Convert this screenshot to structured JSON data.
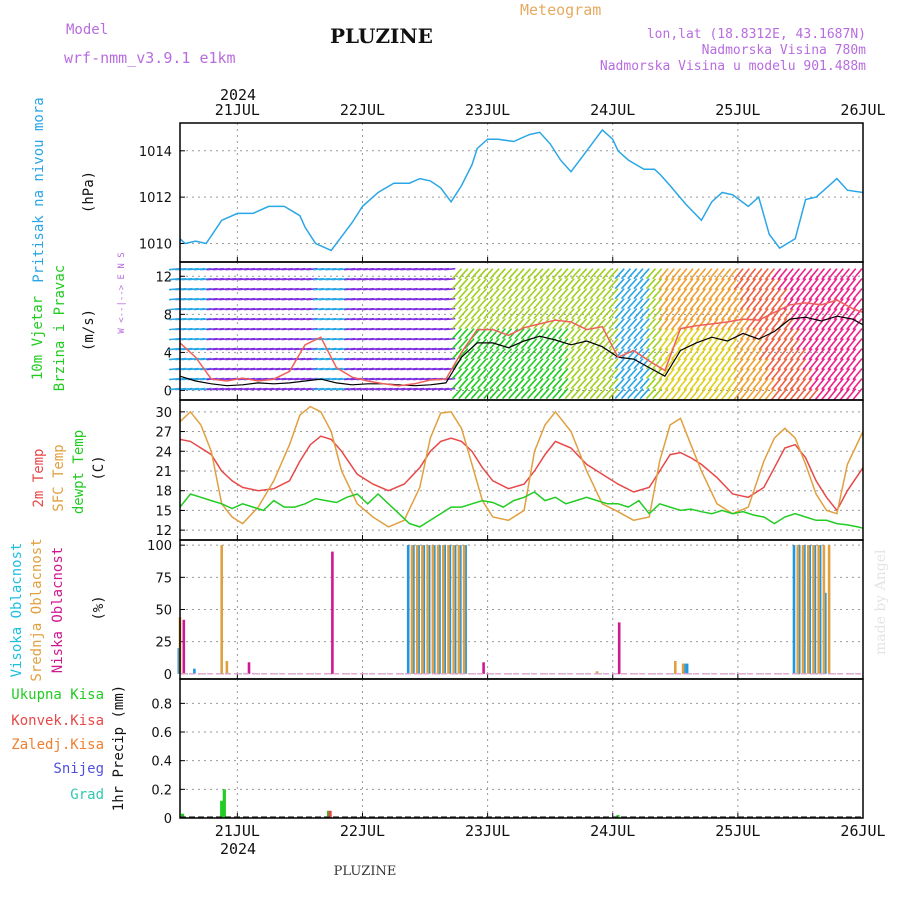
{
  "header": {
    "title": "PLUZINE",
    "model_label": "Model",
    "model_name": "wrf-nmm_v3.9.1  e1km",
    "meteogram": "Meteogram",
    "coords": "lon,lat (18.8312E, 43.1687N)",
    "elevation": "Nadmorska Visina 780m",
    "model_elevation": "Nadmorska Visina u modelu 901.488m",
    "bottom_title": "PLUZINE",
    "credit": "made by Angel"
  },
  "colors": {
    "pressure": "#2aa6e6",
    "wind_avg": "#000000",
    "wind_gust": "#f0605a",
    "temp2m": "#e84848",
    "sfc_temp": "#e0a040",
    "dewpt": "#22cc22",
    "cloud_high": "#1e96e0",
    "cloud_mid": "#e0a040",
    "cloud_low": "#d01890",
    "precip_total": "#22cc22",
    "precip_conv": "#e84848",
    "text_magenta": "#b86ce0",
    "text_orange": "#e6aa60"
  },
  "time_axis": {
    "year": "2024",
    "day_labels": [
      "21JUL",
      "22JUL",
      "23JUL",
      "24JUL",
      "25JUL",
      "26JUL"
    ],
    "start_hour": 13,
    "end_hour": 144
  },
  "chart_data": [
    {
      "type": "line",
      "title": "",
      "ylabel_side": "Pritisak na nivou mora",
      "ylabel_unit": "(hPa)",
      "ylim": [
        1009.2,
        1015.2
      ],
      "yticks": [
        1010,
        1012,
        1014
      ],
      "grid": true,
      "series": [
        {
          "name": "Pritisak na nivou mora",
          "x": [
            13,
            14,
            16,
            18,
            21,
            24,
            27,
            30,
            33,
            36,
            37,
            39,
            42,
            46,
            48,
            51,
            54,
            57,
            59,
            61,
            63,
            65,
            67,
            69,
            70,
            72,
            74,
            77,
            80,
            82,
            84,
            86,
            88,
            90,
            93,
            94,
            96,
            97,
            99,
            102,
            104,
            105,
            107,
            110,
            113,
            115,
            117,
            119,
            122,
            124,
            126,
            128,
            131,
            133,
            135,
            137,
            139,
            141,
            144
          ],
          "values": [
            1010.2,
            1010.0,
            1010.1,
            1010.0,
            1011.0,
            1011.3,
            1011.3,
            1011.6,
            1011.6,
            1011.2,
            1010.7,
            1010.0,
            1009.7,
            1010.9,
            1011.6,
            1012.2,
            1012.6,
            1012.6,
            1012.8,
            1012.7,
            1012.4,
            1011.8,
            1012.5,
            1013.4,
            1014.1,
            1014.5,
            1014.5,
            1014.4,
            1014.7,
            1014.8,
            1014.3,
            1013.6,
            1013.1,
            1013.7,
            1014.6,
            1014.9,
            1014.5,
            1014.0,
            1013.6,
            1013.2,
            1013.2,
            1013.0,
            1012.5,
            1011.7,
            1011.0,
            1011.8,
            1012.2,
            1012.1,
            1011.6,
            1012.0,
            1010.4,
            1009.8,
            1010.2,
            1011.9,
            1012.0,
            1012.4,
            1012.8,
            1012.3,
            1012.2
          ]
        }
      ]
    },
    {
      "type": "line",
      "title": "",
      "ylabel_side": [
        "10m Vjetar",
        "Brzina i Pravac"
      ],
      "ylabel_unit": "(m/s)",
      "compass": "W <--|--> E  N  S",
      "ylim": [
        -1,
        13.5
      ],
      "yticks": [
        0,
        4,
        8,
        12
      ],
      "grid": true,
      "series": [
        {
          "name": "Average wind",
          "x": [
            13,
            16,
            19,
            22,
            25,
            28,
            31,
            34,
            37,
            40,
            43,
            46,
            49,
            52,
            55,
            58,
            61,
            64,
            67,
            70,
            73,
            76,
            79,
            82,
            85,
            88,
            91,
            94,
            97,
            100,
            103,
            106,
            109,
            112,
            115,
            118,
            121,
            124,
            127,
            130,
            133,
            136,
            139,
            142,
            144
          ],
          "values": [
            1.5,
            1.0,
            0.7,
            0.5,
            0.6,
            0.8,
            0.7,
            0.8,
            1.0,
            1.2,
            0.8,
            0.6,
            0.7,
            0.7,
            0.6,
            0.5,
            0.6,
            0.8,
            3.5,
            5.0,
            5.0,
            4.5,
            5.2,
            5.7,
            5.3,
            4.8,
            5.2,
            4.6,
            3.5,
            3.3,
            2.4,
            1.5,
            4.2,
            5.0,
            5.6,
            5.2,
            6.0,
            5.4,
            6.2,
            7.5,
            7.7,
            7.3,
            7.8,
            7.5,
            6.9
          ]
        },
        {
          "name": "Wind gust",
          "x": [
            13,
            16,
            19,
            22,
            25,
            28,
            31,
            34,
            37,
            40,
            43,
            46,
            49,
            52,
            55,
            58,
            61,
            64,
            67,
            70,
            73,
            76,
            79,
            82,
            85,
            88,
            91,
            94,
            97,
            100,
            103,
            106,
            109,
            112,
            115,
            118,
            121,
            124,
            127,
            130,
            133,
            136,
            139,
            142,
            144
          ],
          "values": [
            5.0,
            3.5,
            1.2,
            1.0,
            1.3,
            1.0,
            1.2,
            2.0,
            4.8,
            5.6,
            2.4,
            1.4,
            1.0,
            0.7,
            0.5,
            0.7,
            1.1,
            1.2,
            4.0,
            6.4,
            6.4,
            5.8,
            6.6,
            7.0,
            7.4,
            7.2,
            6.4,
            6.7,
            3.5,
            4.2,
            3.1,
            2.1,
            6.5,
            6.8,
            7.0,
            7.2,
            7.5,
            7.4,
            8.2,
            9.0,
            9.2,
            9.0,
            9.5,
            8.6,
            8.2
          ]
        }
      ]
    },
    {
      "type": "line",
      "title": "",
      "ylabel_side": [
        "2m Temp",
        "SFC Temp",
        "dewpt Temp"
      ],
      "ylabel_unit": "(C)",
      "ylim": [
        10.5,
        31.8
      ],
      "yticks": [
        12,
        15,
        18,
        21,
        24,
        27,
        30
      ],
      "grid": true,
      "series": [
        {
          "name": "2m Temp",
          "x": [
            13,
            15,
            17,
            19,
            21,
            23,
            25,
            28,
            31,
            34,
            36,
            38,
            40,
            42,
            44,
            47,
            50,
            53,
            56,
            59,
            61,
            63,
            65,
            67,
            69,
            71,
            73,
            76,
            79,
            81,
            83,
            85,
            88,
            91,
            94,
            97,
            100,
            103,
            105,
            107,
            109,
            111,
            113,
            116,
            119,
            122,
            125,
            127,
            129,
            131,
            133,
            135,
            137,
            139,
            141,
            144
          ],
          "values": [
            25.8,
            25.5,
            24.5,
            23.5,
            21.0,
            19.5,
            18.5,
            18.0,
            18.3,
            19.5,
            22.5,
            25.0,
            26.3,
            25.8,
            24.0,
            20.5,
            19.0,
            18.0,
            19.0,
            21.5,
            24.0,
            25.5,
            26.0,
            25.5,
            24.0,
            21.5,
            19.5,
            18.3,
            19.0,
            21.0,
            23.5,
            25.5,
            24.5,
            22.0,
            20.5,
            19.0,
            17.8,
            18.5,
            21.0,
            23.5,
            23.8,
            23.0,
            22.0,
            20.0,
            17.5,
            17.0,
            18.5,
            21.5,
            24.5,
            25.0,
            23.0,
            19.5,
            17.0,
            15.0,
            18.0,
            21.5
          ]
        },
        {
          "name": "SFC Temp",
          "x": [
            13,
            15,
            17,
            19,
            21,
            23,
            25,
            28,
            31,
            34,
            36,
            38,
            40,
            42,
            44,
            47,
            50,
            53,
            56,
            59,
            61,
            63,
            65,
            67,
            69,
            71,
            73,
            76,
            79,
            81,
            83,
            85,
            88,
            91,
            94,
            97,
            100,
            103,
            105,
            107,
            109,
            111,
            113,
            116,
            119,
            122,
            125,
            127,
            129,
            131,
            133,
            135,
            137,
            139,
            141,
            144
          ],
          "values": [
            28.5,
            30.0,
            28.0,
            24.0,
            16.0,
            14.0,
            13.0,
            15.5,
            19.5,
            25.0,
            29.5,
            30.8,
            30.0,
            27.0,
            21.0,
            16.0,
            14.0,
            12.5,
            13.5,
            18.5,
            26.0,
            29.8,
            30.0,
            27.5,
            22.0,
            16.5,
            14.0,
            13.5,
            15.0,
            24.0,
            28.0,
            30.0,
            27.0,
            21.0,
            16.0,
            14.8,
            13.5,
            14.0,
            22.5,
            28.0,
            29.0,
            25.0,
            21.0,
            16.0,
            14.5,
            15.5,
            22.5,
            26.0,
            27.5,
            26.0,
            22.0,
            17.5,
            15.0,
            14.5,
            22.0,
            27.0
          ]
        },
        {
          "name": "dewpt Temp",
          "x": [
            13,
            15,
            17,
            19,
            21,
            23,
            25,
            27,
            29,
            31,
            33,
            35,
            37,
            39,
            41,
            43,
            45,
            47,
            49,
            51,
            53,
            55,
            57,
            59,
            61,
            63,
            65,
            67,
            69,
            71,
            73,
            75,
            77,
            79,
            81,
            83,
            85,
            87,
            89,
            91,
            93,
            95,
            97,
            99,
            101,
            103,
            105,
            107,
            109,
            111,
            113,
            115,
            117,
            119,
            121,
            123,
            125,
            127,
            129,
            131,
            133,
            135,
            137,
            139,
            141,
            143,
            144
          ],
          "values": [
            15.5,
            17.5,
            17.0,
            16.5,
            16.0,
            15.3,
            16.0,
            15.5,
            15.0,
            16.5,
            15.5,
            15.5,
            16.0,
            16.8,
            16.5,
            16.2,
            17.0,
            17.5,
            16.0,
            17.5,
            16.0,
            14.5,
            13.0,
            12.5,
            13.5,
            14.5,
            15.5,
            15.5,
            16.0,
            16.5,
            16.2,
            15.5,
            16.5,
            17.0,
            17.8,
            16.5,
            17.0,
            16.0,
            16.5,
            17.0,
            16.5,
            16.0,
            16.0,
            15.5,
            16.5,
            14.5,
            16.0,
            15.5,
            15.0,
            15.2,
            14.8,
            14.5,
            15.0,
            14.5,
            14.8,
            14.3,
            14.0,
            13.0,
            14.0,
            14.5,
            14.0,
            13.5,
            13.5,
            13.0,
            12.8,
            12.5,
            12.3
          ]
        }
      ]
    },
    {
      "type": "bar",
      "title": "",
      "ylabel_side": [
        "Visoka Oblacnost",
        "Srednja Oblacnost",
        "Niska Oblacnost"
      ],
      "ylabel_unit": "(%)",
      "ylim": [
        -4,
        104
      ],
      "yticks": [
        0,
        25,
        50,
        75,
        100
      ],
      "grid": true,
      "series": [
        {
          "name": "Visoka Oblacnost",
          "x": [
            13,
            16,
            57,
            58,
            59,
            60,
            61,
            62,
            63,
            64,
            65,
            66,
            67,
            68,
            110,
            110.5,
            131,
            132,
            133,
            134,
            135,
            136,
            137
          ],
          "values": [
            20,
            4,
            100,
            100,
            100,
            100,
            100,
            100,
            100,
            100,
            100,
            100,
            100,
            100,
            8,
            8,
            100,
            100,
            100,
            100,
            100,
            100,
            63
          ]
        },
        {
          "name": "Srednja Oblacnost",
          "x": [
            13,
            21,
            22,
            57.5,
            58.5,
            59.5,
            60.5,
            61.5,
            62.5,
            63.5,
            64.5,
            65.5,
            66.5,
            67.5,
            93,
            108,
            109.5,
            131.5,
            132.5,
            133.5,
            134.5,
            135.5,
            136.5,
            137.5
          ],
          "values": [
            44,
            100,
            10,
            100,
            100,
            100,
            100,
            100,
            100,
            100,
            100,
            100,
            100,
            100,
            2,
            10,
            8,
            100,
            100,
            100,
            100,
            100,
            100,
            100
          ]
        },
        {
          "name": "Niska Oblacnost",
          "x": [
            13.5,
            26,
            42,
            71,
            97
          ],
          "values": [
            42,
            9,
            95,
            9,
            40
          ]
        }
      ]
    },
    {
      "type": "bar",
      "title": "",
      "ylabel_side": [
        "Ukupna Kisa",
        "Konvek.Kisa",
        "Zaledj.Kisa",
        "Snijeg",
        "Grad"
      ],
      "ylabel_unit": "1hr Precip (mm)",
      "ylim": [
        0,
        0.97
      ],
      "yticks": [
        0,
        0.2,
        0.4,
        0.6,
        0.8
      ],
      "grid": true,
      "series": [
        {
          "name": "Ukupna Kisa",
          "x": [
            13.5,
            21,
            21.5,
            41.5,
            97
          ],
          "values": [
            0.03,
            0.12,
            0.2,
            0.05,
            0.02
          ]
        },
        {
          "name": "Konvek.Kisa",
          "x": [
            41.5
          ],
          "values": [
            0.05
          ]
        }
      ]
    }
  ]
}
